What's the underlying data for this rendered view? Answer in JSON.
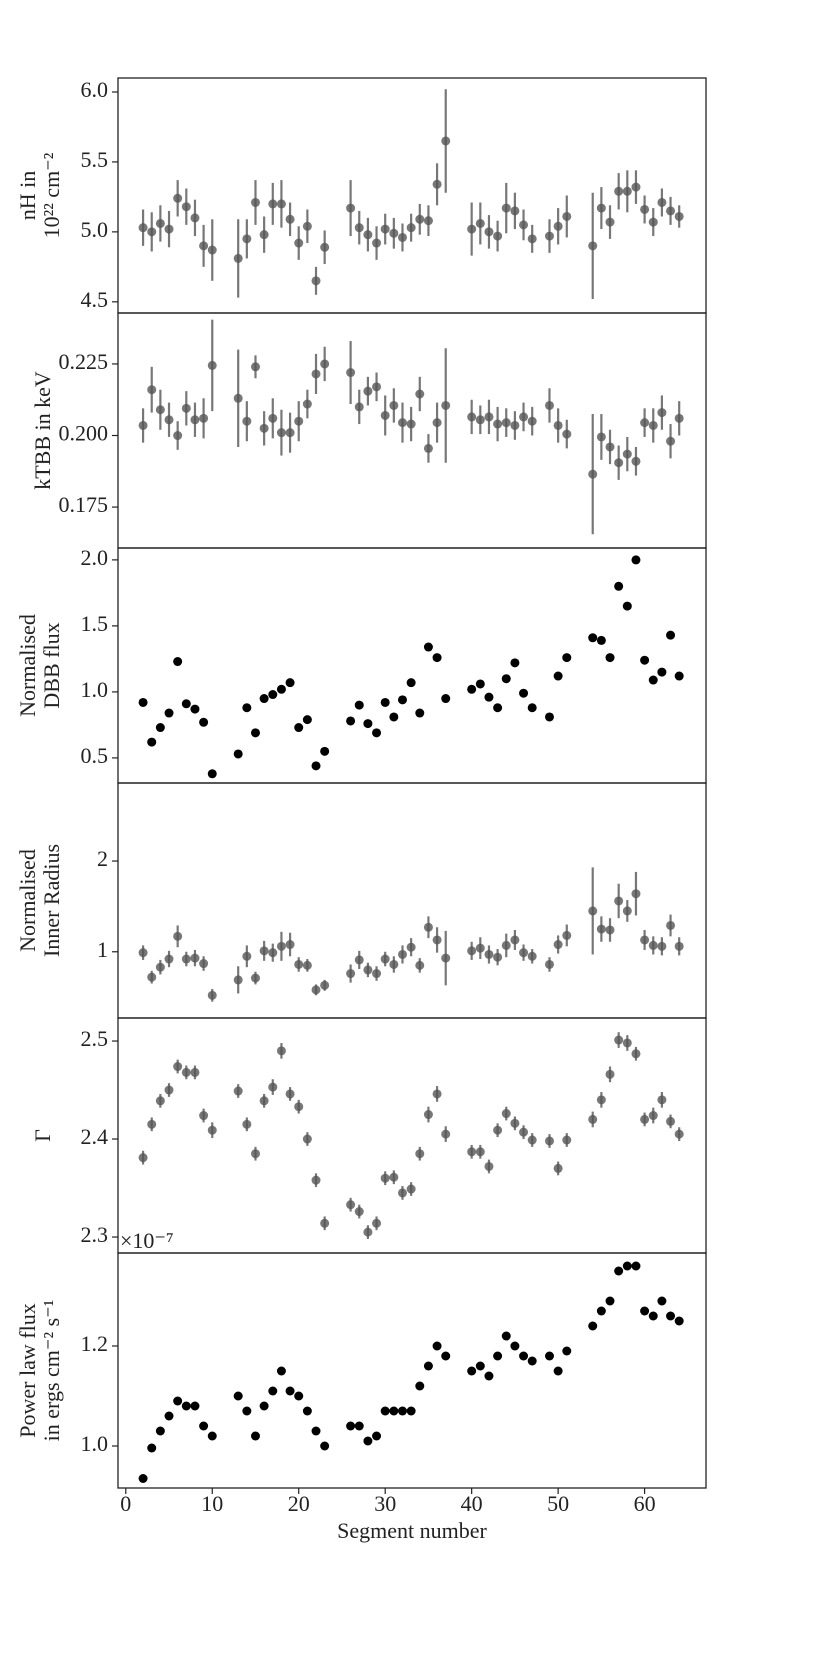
{
  "chart_data": [
    {
      "type": "scatter",
      "ylabel": [
        "nH in",
        "10²² cm⁻²"
      ],
      "color": "#555555",
      "error_color": "#777777",
      "xlim": [
        -0.9,
        67.1
      ],
      "ylim": [
        4.42,
        6.1
      ],
      "yticks": [
        {
          "value": 4.5,
          "label": "4.5"
        },
        5.5,
        {
          "value": 5,
          "label": "5.0"
        },
        {
          "value": 6,
          "label": "6.0"
        }
      ],
      "x": [
        2,
        3,
        4,
        5,
        6,
        7,
        8,
        9,
        10,
        13,
        14,
        15,
        16,
        17,
        18,
        19,
        20,
        21,
        22,
        23,
        26,
        27,
        28,
        29,
        30,
        31,
        32,
        33,
        34,
        35,
        36,
        37,
        40,
        41,
        42,
        43,
        44,
        45,
        46,
        47,
        49,
        50,
        51,
        54,
        55,
        56,
        57,
        58,
        59,
        60,
        61,
        62,
        63,
        64
      ],
      "values": [
        5.03,
        5.0,
        5.06,
        5.02,
        5.24,
        5.18,
        5.1,
        4.9,
        4.87,
        4.81,
        4.95,
        5.21,
        4.98,
        5.2,
        5.2,
        5.09,
        4.92,
        5.04,
        4.65,
        4.89,
        5.17,
        5.03,
        4.98,
        4.92,
        5.02,
        4.99,
        4.96,
        5.03,
        5.09,
        5.08,
        5.34,
        5.65,
        5.02,
        5.06,
        5.0,
        4.97,
        5.17,
        5.15,
        5.05,
        4.95,
        4.97,
        5.04,
        5.11,
        4.9,
        5.17,
        5.07,
        5.29,
        5.29,
        5.32,
        5.16,
        5.07,
        5.21,
        5.15,
        5.11
      ],
      "errors": [
        0.13,
        0.14,
        0.13,
        0.13,
        0.13,
        0.13,
        0.13,
        0.15,
        0.22,
        0.28,
        0.14,
        0.16,
        0.13,
        0.15,
        0.17,
        0.12,
        0.12,
        0.12,
        0.1,
        0.12,
        0.2,
        0.12,
        0.12,
        0.12,
        0.11,
        0.11,
        0.1,
        0.1,
        0.11,
        0.11,
        0.15,
        0.37,
        0.19,
        0.15,
        0.12,
        0.11,
        0.18,
        0.13,
        0.11,
        0.1,
        0.12,
        0.13,
        0.15,
        0.38,
        0.15,
        0.12,
        0.13,
        0.15,
        0.12,
        0.1,
        0.1,
        0.1,
        0.1,
        0.08
      ]
    },
    {
      "type": "scatter",
      "ylabel": [
        "kTBB in keV"
      ],
      "color": "#555555",
      "error_color": "#777777",
      "xlim": [
        -0.9,
        67.1
      ],
      "ylim": [
        0.1607,
        0.2428
      ],
      "yticks": [
        0.175,
        {
          "value": 0.2,
          "label": "0.200"
        },
        0.225
      ],
      "x": [
        2,
        3,
        4,
        5,
        6,
        7,
        8,
        9,
        10,
        13,
        14,
        15,
        16,
        17,
        18,
        19,
        20,
        21,
        22,
        23,
        26,
        27,
        28,
        29,
        30,
        31,
        32,
        33,
        34,
        35,
        36,
        37,
        40,
        41,
        42,
        43,
        44,
        45,
        46,
        47,
        49,
        50,
        51,
        54,
        55,
        56,
        57,
        58,
        59,
        60,
        61,
        62,
        63,
        64
      ],
      "values": [
        0.2035,
        0.216,
        0.209,
        0.2055,
        0.2,
        0.2095,
        0.2055,
        0.206,
        0.2245,
        0.213,
        0.205,
        0.224,
        0.2025,
        0.206,
        0.201,
        0.201,
        0.205,
        0.211,
        0.2215,
        0.225,
        0.222,
        0.21,
        0.2155,
        0.217,
        0.207,
        0.2105,
        0.2045,
        0.204,
        0.2145,
        0.1955,
        0.2045,
        0.2105,
        0.2065,
        0.2055,
        0.2065,
        0.204,
        0.2045,
        0.2035,
        0.2065,
        0.205,
        0.2105,
        0.2035,
        0.2005,
        0.1865,
        0.1995,
        0.196,
        0.1905,
        0.1935,
        0.191,
        0.2045,
        0.2035,
        0.208,
        0.198,
        0.206
      ],
      "errors": [
        0.006,
        0.008,
        0.007,
        0.006,
        0.005,
        0.006,
        0.006,
        0.007,
        0.016,
        0.017,
        0.007,
        0.004,
        0.006,
        0.007,
        0.008,
        0.007,
        0.007,
        0.005,
        0.007,
        0.006,
        0.011,
        0.006,
        0.005,
        0.005,
        0.007,
        0.006,
        0.007,
        0.006,
        0.006,
        0.005,
        0.007,
        0.02,
        0.006,
        0.005,
        0.006,
        0.006,
        0.005,
        0.005,
        0.005,
        0.005,
        0.006,
        0.006,
        0.005,
        0.021,
        0.008,
        0.006,
        0.006,
        0.006,
        0.005,
        0.005,
        0.006,
        0.006,
        0.006,
        0.006
      ]
    },
    {
      "type": "scatter",
      "ylabel": [
        "Normalised",
        "DBB flux"
      ],
      "color": "#000000",
      "xlim": [
        -0.9,
        67.1
      ],
      "ylim": [
        0.31,
        2.09
      ],
      "yticks": [
        0.5,
        {
          "value": 1,
          "label": "1.0"
        },
        1.5,
        {
          "value": 2,
          "label": "2.0"
        }
      ],
      "x": [
        2,
        3,
        4,
        5,
        6,
        7,
        8,
        9,
        10,
        13,
        14,
        15,
        16,
        17,
        18,
        19,
        20,
        21,
        22,
        23,
        26,
        27,
        28,
        29,
        30,
        31,
        32,
        33,
        34,
        35,
        36,
        37,
        40,
        41,
        42,
        43,
        44,
        45,
        46,
        47,
        49,
        50,
        51,
        54,
        55,
        56,
        57,
        58,
        59,
        60,
        61,
        62,
        63,
        64
      ],
      "values": [
        0.92,
        0.62,
        0.73,
        0.84,
        1.23,
        0.91,
        0.87,
        0.77,
        0.38,
        0.53,
        0.88,
        0.69,
        0.95,
        0.98,
        1.02,
        1.07,
        0.73,
        0.79,
        0.44,
        0.55,
        0.78,
        0.9,
        0.76,
        0.69,
        0.92,
        0.81,
        0.94,
        1.07,
        0.84,
        1.34,
        1.26,
        0.95,
        1.02,
        1.06,
        0.96,
        0.88,
        1.1,
        1.22,
        0.99,
        0.88,
        0.81,
        1.12,
        1.26,
        1.41,
        1.39,
        1.26,
        1.8,
        1.65,
        2.0,
        1.24,
        1.09,
        1.15,
        1.43,
        1.12
      ]
    },
    {
      "type": "scatter",
      "ylabel": [
        "Normalised",
        "Inner Radius"
      ],
      "color": "#555555",
      "error_color": "#777777",
      "xlim": [
        -0.9,
        67.1
      ],
      "ylim": [
        0.27,
        2.86
      ],
      "yticks": [
        1,
        2
      ],
      "x": [
        2,
        3,
        4,
        5,
        6,
        7,
        8,
        9,
        10,
        13,
        14,
        15,
        16,
        17,
        18,
        19,
        20,
        21,
        22,
        23,
        26,
        27,
        28,
        29,
        30,
        31,
        32,
        33,
        34,
        35,
        36,
        37,
        40,
        41,
        42,
        43,
        44,
        45,
        46,
        47,
        49,
        50,
        51,
        54,
        55,
        56,
        57,
        58,
        59,
        60,
        61,
        62,
        63,
        64
      ],
      "values": [
        0.99,
        0.72,
        0.83,
        0.92,
        1.17,
        0.92,
        0.93,
        0.87,
        0.52,
        0.69,
        0.95,
        0.71,
        1.01,
        0.99,
        1.06,
        1.08,
        0.86,
        0.85,
        0.58,
        0.63,
        0.76,
        0.91,
        0.8,
        0.76,
        0.92,
        0.86,
        0.97,
        1.05,
        0.85,
        1.27,
        1.13,
        0.93,
        1.01,
        1.04,
        0.97,
        0.94,
        1.07,
        1.13,
        0.99,
        0.95,
        0.86,
        1.08,
        1.18,
        1.45,
        1.25,
        1.24,
        1.56,
        1.45,
        1.64,
        1.13,
        1.07,
        1.06,
        1.29,
        1.06
      ],
      "errors": [
        0.08,
        0.07,
        0.08,
        0.09,
        0.12,
        0.08,
        0.09,
        0.08,
        0.07,
        0.15,
        0.12,
        0.07,
        0.11,
        0.1,
        0.16,
        0.13,
        0.08,
        0.07,
        0.06,
        0.06,
        0.1,
        0.1,
        0.08,
        0.08,
        0.08,
        0.09,
        0.1,
        0.1,
        0.08,
        0.12,
        0.14,
        0.3,
        0.1,
        0.12,
        0.1,
        0.09,
        0.13,
        0.11,
        0.09,
        0.08,
        0.08,
        0.1,
        0.12,
        0.48,
        0.14,
        0.13,
        0.19,
        0.12,
        0.24,
        0.11,
        0.1,
        0.1,
        0.12,
        0.1
      ]
    },
    {
      "type": "scatter",
      "ylabel": [
        "Γ"
      ],
      "color": "#555555",
      "error_color": "#777777",
      "xlim": [
        -0.9,
        67.1
      ],
      "ylim": [
        2.2837,
        2.5235
      ],
      "yticks": [
        2.3,
        2.4,
        2.5
      ],
      "x": [
        2,
        3,
        4,
        5,
        6,
        7,
        8,
        9,
        10,
        13,
        14,
        15,
        16,
        17,
        18,
        19,
        20,
        21,
        22,
        23,
        26,
        27,
        28,
        29,
        30,
        31,
        32,
        33,
        34,
        35,
        36,
        37,
        40,
        41,
        42,
        43,
        44,
        45,
        46,
        47,
        49,
        50,
        51,
        54,
        55,
        56,
        57,
        58,
        59,
        60,
        61,
        62,
        63,
        64
      ],
      "values": [
        2.381,
        2.415,
        2.439,
        2.45,
        2.474,
        2.468,
        2.468,
        2.424,
        2.409,
        2.449,
        2.415,
        2.385,
        2.439,
        2.453,
        2.49,
        2.446,
        2.433,
        2.4,
        2.358,
        2.314,
        2.333,
        2.326,
        2.305,
        2.314,
        2.36,
        2.361,
        2.345,
        2.349,
        2.385,
        2.425,
        2.446,
        2.405,
        2.387,
        2.387,
        2.372,
        2.409,
        2.426,
        2.416,
        2.407,
        2.399,
        2.398,
        2.37,
        2.399,
        2.42,
        2.44,
        2.466,
        2.501,
        2.498,
        2.487,
        2.42,
        2.424,
        2.44,
        2.418,
        2.405
      ],
      "errors": [
        0.007,
        0.007,
        0.007,
        0.007,
        0.007,
        0.007,
        0.007,
        0.007,
        0.008,
        0.007,
        0.007,
        0.007,
        0.007,
        0.008,
        0.008,
        0.007,
        0.007,
        0.007,
        0.007,
        0.007,
        0.007,
        0.007,
        0.007,
        0.007,
        0.007,
        0.007,
        0.007,
        0.007,
        0.007,
        0.008,
        0.008,
        0.008,
        0.007,
        0.007,
        0.007,
        0.007,
        0.007,
        0.007,
        0.007,
        0.007,
        0.007,
        0.007,
        0.007,
        0.008,
        0.008,
        0.008,
        0.008,
        0.008,
        0.007,
        0.007,
        0.008,
        0.008,
        0.007,
        0.007
      ]
    },
    {
      "type": "scatter",
      "ylabel": [
        "Power law flux",
        "in ergs cm⁻² s⁻¹"
      ],
      "color": "#000000",
      "offset_text": "×10⁻⁷",
      "xlim": [
        -0.9,
        67.1
      ],
      "ylim": [
        0.916,
        1.386
      ],
      "yticks": [
        {
          "value": 1,
          "label": "1.0"
        },
        1.2
      ],
      "xticks": [
        0,
        10,
        20,
        30,
        40,
        50,
        60
      ],
      "xlabel": "Segment number",
      "x": [
        2,
        3,
        4,
        5,
        6,
        7,
        8,
        9,
        10,
        13,
        14,
        15,
        16,
        17,
        18,
        19,
        20,
        21,
        22,
        23,
        26,
        27,
        28,
        29,
        30,
        31,
        32,
        33,
        34,
        35,
        36,
        37,
        40,
        41,
        42,
        43,
        44,
        45,
        46,
        47,
        49,
        50,
        51,
        54,
        55,
        56,
        57,
        58,
        59,
        60,
        61,
        62,
        63,
        64
      ],
      "values": [
        0.935,
        0.996,
        1.03,
        1.06,
        1.09,
        1.08,
        1.08,
        1.04,
        1.02,
        1.1,
        1.07,
        1.02,
        1.08,
        1.11,
        1.15,
        1.11,
        1.1,
        1.07,
        1.03,
        1.0,
        1.04,
        1.04,
        1.01,
        1.02,
        1.07,
        1.07,
        1.07,
        1.07,
        1.12,
        1.16,
        1.2,
        1.18,
        1.15,
        1.16,
        1.14,
        1.18,
        1.22,
        1.2,
        1.18,
        1.17,
        1.18,
        1.15,
        1.19,
        1.24,
        1.27,
        1.29,
        1.35,
        1.36,
        1.36,
        1.27,
        1.26,
        1.29,
        1.26,
        1.25
      ]
    }
  ]
}
